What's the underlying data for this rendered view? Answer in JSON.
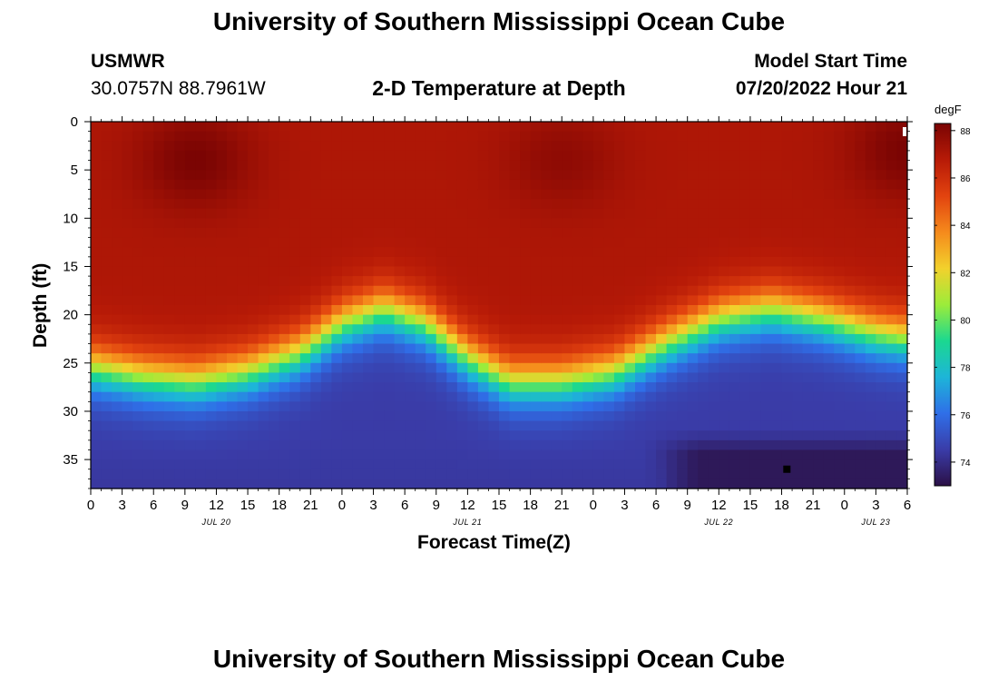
{
  "header": {
    "title_top": "University of Southern Mississippi Ocean Cube",
    "title_bottom": "University of Southern Mississippi Ocean Cube",
    "station": "USMWR",
    "coords": "30.0757N  88.7961W",
    "subtitle": "2-D Temperature at Depth",
    "model_start_label": "Model Start Time",
    "model_start_value": "07/20/2022 Hour 21"
  },
  "chart_data": {
    "type": "heatmap",
    "title": "2-D Temperature at Depth",
    "xlabel": "Forecast Time(Z)",
    "ylabel": "Depth (ft)",
    "x_range_hours": [
      0,
      78
    ],
    "ylim": [
      38,
      0
    ],
    "x_ticks": [
      "0",
      "3",
      "6",
      "9",
      "12",
      "15",
      "18",
      "21",
      "0",
      "3",
      "6",
      "9",
      "12",
      "15",
      "18",
      "21",
      "0",
      "3",
      "6",
      "9",
      "12",
      "15",
      "18",
      "21",
      "0",
      "3",
      "6"
    ],
    "x_tick_hours": [
      0,
      3,
      6,
      9,
      12,
      15,
      18,
      21,
      24,
      27,
      30,
      33,
      36,
      39,
      42,
      45,
      48,
      51,
      54,
      57,
      60,
      63,
      66,
      69,
      72,
      75,
      78
    ],
    "date_labels": [
      {
        "label": "JUL 20",
        "hour": 12
      },
      {
        "label": "JUL 21",
        "hour": 36
      },
      {
        "label": "JUL 22",
        "hour": 60
      },
      {
        "label": "JUL 23",
        "hour": 75
      }
    ],
    "y_ticks": [
      0,
      5,
      10,
      15,
      20,
      25,
      30,
      35
    ],
    "colorbar": {
      "unit": "degF",
      "min": 73,
      "max": 88.3,
      "ticks": [
        74,
        76,
        78,
        80,
        82,
        84,
        86,
        88
      ],
      "colors": [
        "#2b1046",
        "#3a3ca8",
        "#2f6fe8",
        "#1db5d8",
        "#1bd890",
        "#9cec3a",
        "#f2d12c",
        "#f58a1c",
        "#e2430f",
        "#b71a07",
        "#7a0403"
      ]
    },
    "surface_temp_degF": 87,
    "thermocline_depth_ft": [
      {
        "hour": 0,
        "depth": 25.5
      },
      {
        "hour": 5,
        "depth": 26.5
      },
      {
        "hour": 10,
        "depth": 27
      },
      {
        "hour": 15,
        "depth": 26
      },
      {
        "hour": 20,
        "depth": 24
      },
      {
        "hour": 24,
        "depth": 21
      },
      {
        "hour": 28,
        "depth": 19.5
      },
      {
        "hour": 32,
        "depth": 21
      },
      {
        "hour": 36,
        "depth": 24.5
      },
      {
        "hour": 40,
        "depth": 27
      },
      {
        "hour": 45,
        "depth": 27
      },
      {
        "hour": 50,
        "depth": 26
      },
      {
        "hour": 55,
        "depth": 23
      },
      {
        "hour": 60,
        "depth": 20.5
      },
      {
        "hour": 65,
        "depth": 19.5
      },
      {
        "hour": 70,
        "depth": 20.5
      },
      {
        "hour": 75,
        "depth": 22
      },
      {
        "hour": 78,
        "depth": 22.5
      }
    ],
    "warm_cores": [
      {
        "hour": 10,
        "depth": 4,
        "temp": 88.3
      },
      {
        "hour": 45,
        "depth": 4,
        "temp": 87.8
      },
      {
        "hour": 78,
        "depth": 3,
        "temp": 88.3
      }
    ],
    "cold_pool": {
      "hour_start": 55,
      "hour_end": 78,
      "depth_top": 33,
      "min_temp": 73
    },
    "marker": {
      "hour": 66.5,
      "depth": 36
    }
  }
}
